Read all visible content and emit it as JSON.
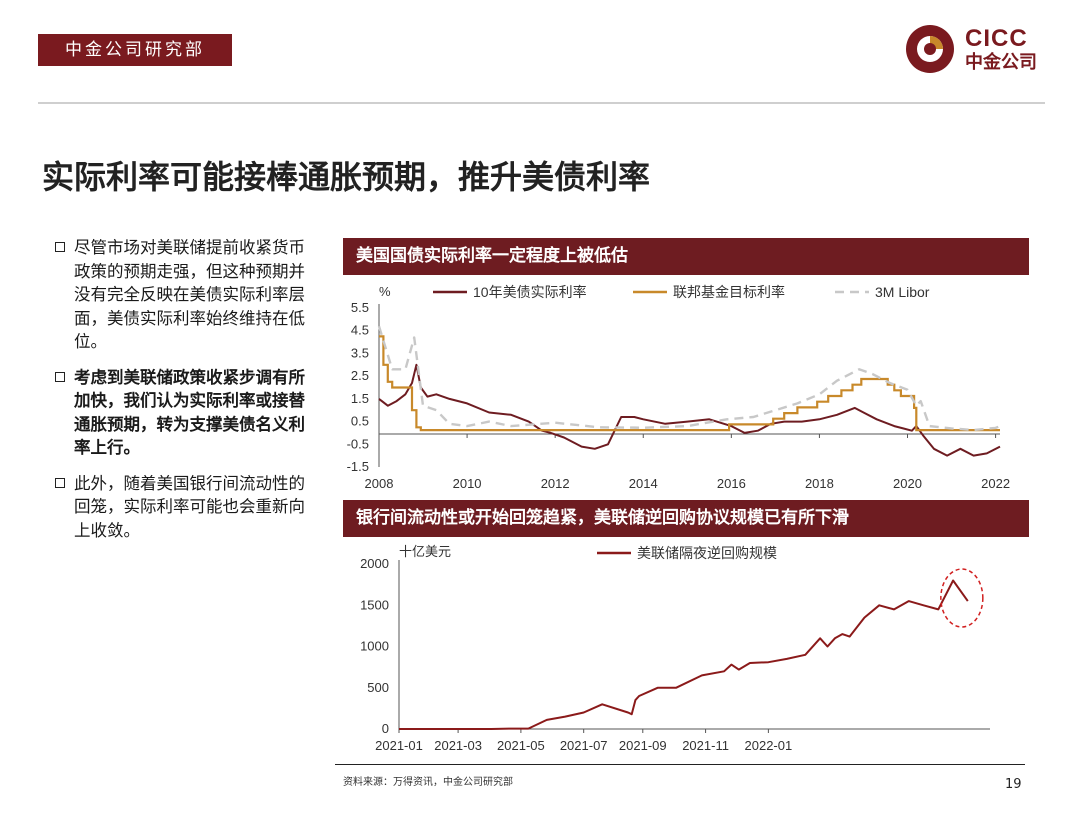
{
  "header": {
    "dept_label": "中金公司研究部"
  },
  "logo": {
    "en": "CICC",
    "cn": "中金公司"
  },
  "title": "实际利率可能接棒通胀预期，推升美债利率",
  "bullets": [
    {
      "text": "尽管市场对美联储提前收紧货币政策的预期走强，但这种预期并没有完全反映在美债实际利率层面，美债实际利率始终维持在低位。",
      "bold": false
    },
    {
      "text": "考虑到美联储政策收紧步调有所加快，我们认为实际利率或接替通胀预期，转为支撑美债名义利率上行。",
      "bold": true
    },
    {
      "text": "此外，随着美国银行间流动性的回笼，实际利率可能也会重新向上收敛。",
      "bold": false
    }
  ],
  "colors": {
    "brand": "#6e1c21",
    "real_rate": "#6e1c21",
    "fed_target": "#c8892a",
    "libor": "#c8c8c8",
    "repo": "#8b1a1a",
    "circle": "#d12020"
  },
  "panel1": {
    "header": "美国国债实际利率一定程度上被低估"
  },
  "panel2": {
    "header": "银行间流动性或开始回笼趋紧，美联储逆回购协议规模已有所下滑"
  },
  "chart_data": [
    {
      "type": "line",
      "ylabel": "%",
      "ylim": [
        -1.5,
        5.5
      ],
      "yticks": [
        "5.5",
        "4.5",
        "3.5",
        "2.5",
        "1.5",
        "0.5",
        "-0.5",
        "-1.5"
      ],
      "xticks": [
        "2008",
        "2010",
        "2012",
        "2014",
        "2016",
        "2018",
        "2020",
        "2022"
      ],
      "legend_position": "top",
      "series": [
        {
          "name": "10年美债实际利率",
          "x": [
            2008.0,
            2008.2,
            2008.4,
            2008.6,
            2008.75,
            2008.85,
            2008.95,
            2009.1,
            2009.3,
            2009.6,
            2010.0,
            2010.5,
            2011.0,
            2011.4,
            2011.7,
            2011.9,
            2012.2,
            2012.6,
            2012.9,
            2013.2,
            2013.5,
            2013.8,
            2014.0,
            2014.5,
            2015.0,
            2015.5,
            2016.0,
            2016.3,
            2016.6,
            2016.9,
            2017.2,
            2017.6,
            2018.0,
            2018.4,
            2018.8,
            2019.0,
            2019.3,
            2019.7,
            2019.9,
            2020.1,
            2020.2,
            2020.35,
            2020.6,
            2020.9,
            2021.2,
            2021.5,
            2021.8,
            2022.1
          ],
          "values": [
            1.5,
            1.2,
            1.4,
            1.7,
            2.2,
            3.0,
            2.0,
            1.6,
            1.7,
            1.5,
            1.3,
            0.9,
            0.8,
            0.5,
            0.1,
            0.0,
            -0.2,
            -0.6,
            -0.7,
            -0.5,
            0.7,
            0.7,
            0.6,
            0.4,
            0.5,
            0.6,
            0.3,
            0.0,
            0.1,
            0.4,
            0.5,
            0.5,
            0.6,
            0.8,
            1.1,
            0.9,
            0.6,
            0.3,
            0.2,
            0.1,
            0.3,
            -0.1,
            -0.7,
            -1.0,
            -0.7,
            -1.0,
            -0.9,
            -0.6
          ]
        },
        {
          "name": "联邦基金目标利率",
          "x": [
            2008.0,
            2008.1,
            2008.2,
            2008.3,
            2008.75,
            2008.85,
            2008.95,
            2015.95,
            2016.95,
            2017.2,
            2017.5,
            2017.95,
            2018.2,
            2018.5,
            2018.75,
            2018.95,
            2019.55,
            2019.7,
            2019.85,
            2020.15,
            2020.2,
            2022.1
          ],
          "values": [
            4.25,
            3.0,
            2.25,
            2.0,
            1.0,
            0.25,
            0.125,
            0.375,
            0.625,
            0.875,
            1.125,
            1.375,
            1.625,
            1.875,
            2.125,
            2.375,
            2.125,
            1.875,
            1.625,
            1.1,
            0.125,
            0.125
          ]
        },
        {
          "name": "3M Libor",
          "x": [
            2008.0,
            2008.3,
            2008.6,
            2008.8,
            2009.0,
            2009.3,
            2009.6,
            2010.0,
            2010.5,
            2011.0,
            2012.0,
            2013.0,
            2014.0,
            2015.0,
            2015.9,
            2016.5,
            2017.0,
            2017.5,
            2018.0,
            2018.4,
            2018.9,
            2019.2,
            2019.6,
            2020.0,
            2020.2,
            2020.3,
            2020.5,
            2021.0,
            2021.5,
            2022.0,
            2022.1
          ],
          "values": [
            4.7,
            2.8,
            2.8,
            4.2,
            1.2,
            1.0,
            0.4,
            0.3,
            0.5,
            0.3,
            0.45,
            0.25,
            0.23,
            0.3,
            0.6,
            0.7,
            1.0,
            1.3,
            1.7,
            2.3,
            2.8,
            2.6,
            2.2,
            1.9,
            1.2,
            1.4,
            0.3,
            0.2,
            0.13,
            0.22,
            0.3
          ]
        }
      ]
    },
    {
      "type": "line",
      "ylabel": "十亿美元",
      "ylim": [
        0,
        2000
      ],
      "yticks": [
        "2000",
        "1500",
        "1000",
        "500",
        "0"
      ],
      "xticks": [
        "2021-01",
        "2021-03",
        "2021-05",
        "2021-07",
        "2021-09",
        "2021-11",
        "2022-01"
      ],
      "legend_position": "top",
      "annotation": "dashed red circle around early 2022 decline",
      "series": [
        {
          "name": "美联储隔夜逆回购规模",
          "x": [
            2021.0,
            2021.25,
            2021.3,
            2021.32,
            2021.35,
            2021.4,
            2021.45,
            2021.5,
            2021.55,
            2021.62,
            2021.63,
            2021.64,
            2021.65,
            2021.7,
            2021.75,
            2021.82,
            2021.88,
            2021.9,
            2021.92,
            2021.95,
            2022.0,
            2022.05,
            2022.1,
            2022.14,
            2022.16,
            2022.18,
            2022.2,
            2022.22,
            2022.26,
            2022.3,
            2022.34,
            2022.38,
            2022.42,
            2022.46,
            2022.5,
            2022.54
          ],
          "values": [
            0,
            0,
            5,
            5,
            5,
            110,
            150,
            200,
            300,
            200,
            180,
            350,
            400,
            500,
            500,
            650,
            700,
            780,
            720,
            800,
            810,
            850,
            900,
            1100,
            1000,
            1100,
            1150,
            1120,
            1350,
            1500,
            1450,
            1550,
            1500,
            1450,
            1800,
            1550
          ]
        }
      ]
    }
  ],
  "source": "资料来源：万得资讯，中金公司研究部",
  "page_number": "19"
}
